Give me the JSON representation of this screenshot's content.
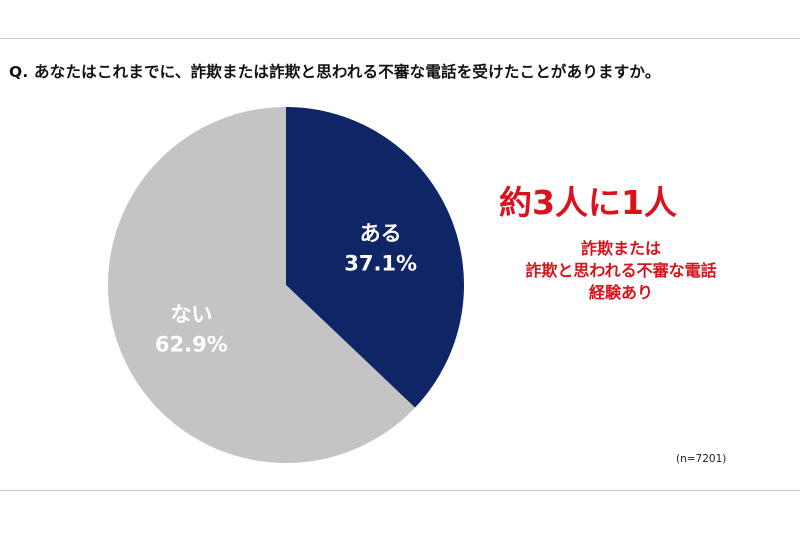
{
  "question": "Q. あなたはこれまでに、詐欺または詐欺と思われる不審な電話を受けたことがありますか。",
  "chart_data": {
    "type": "pie",
    "slices": [
      {
        "label": "ある",
        "value": 37.1,
        "value_text": "37.1%",
        "color": "#0f2566"
      },
      {
        "label": "ない",
        "value": 62.9,
        "value_text": "62.9%",
        "color": "#c4c4c4"
      }
    ],
    "start": "12 o'clock",
    "direction": "clockwise"
  },
  "callout": {
    "headline": "約3人に1人",
    "lines": [
      "詐欺または",
      "詐欺と思われる不審な電話",
      "経験あり"
    ],
    "color": "#d9121b"
  },
  "sample_size": "(n=7201)"
}
